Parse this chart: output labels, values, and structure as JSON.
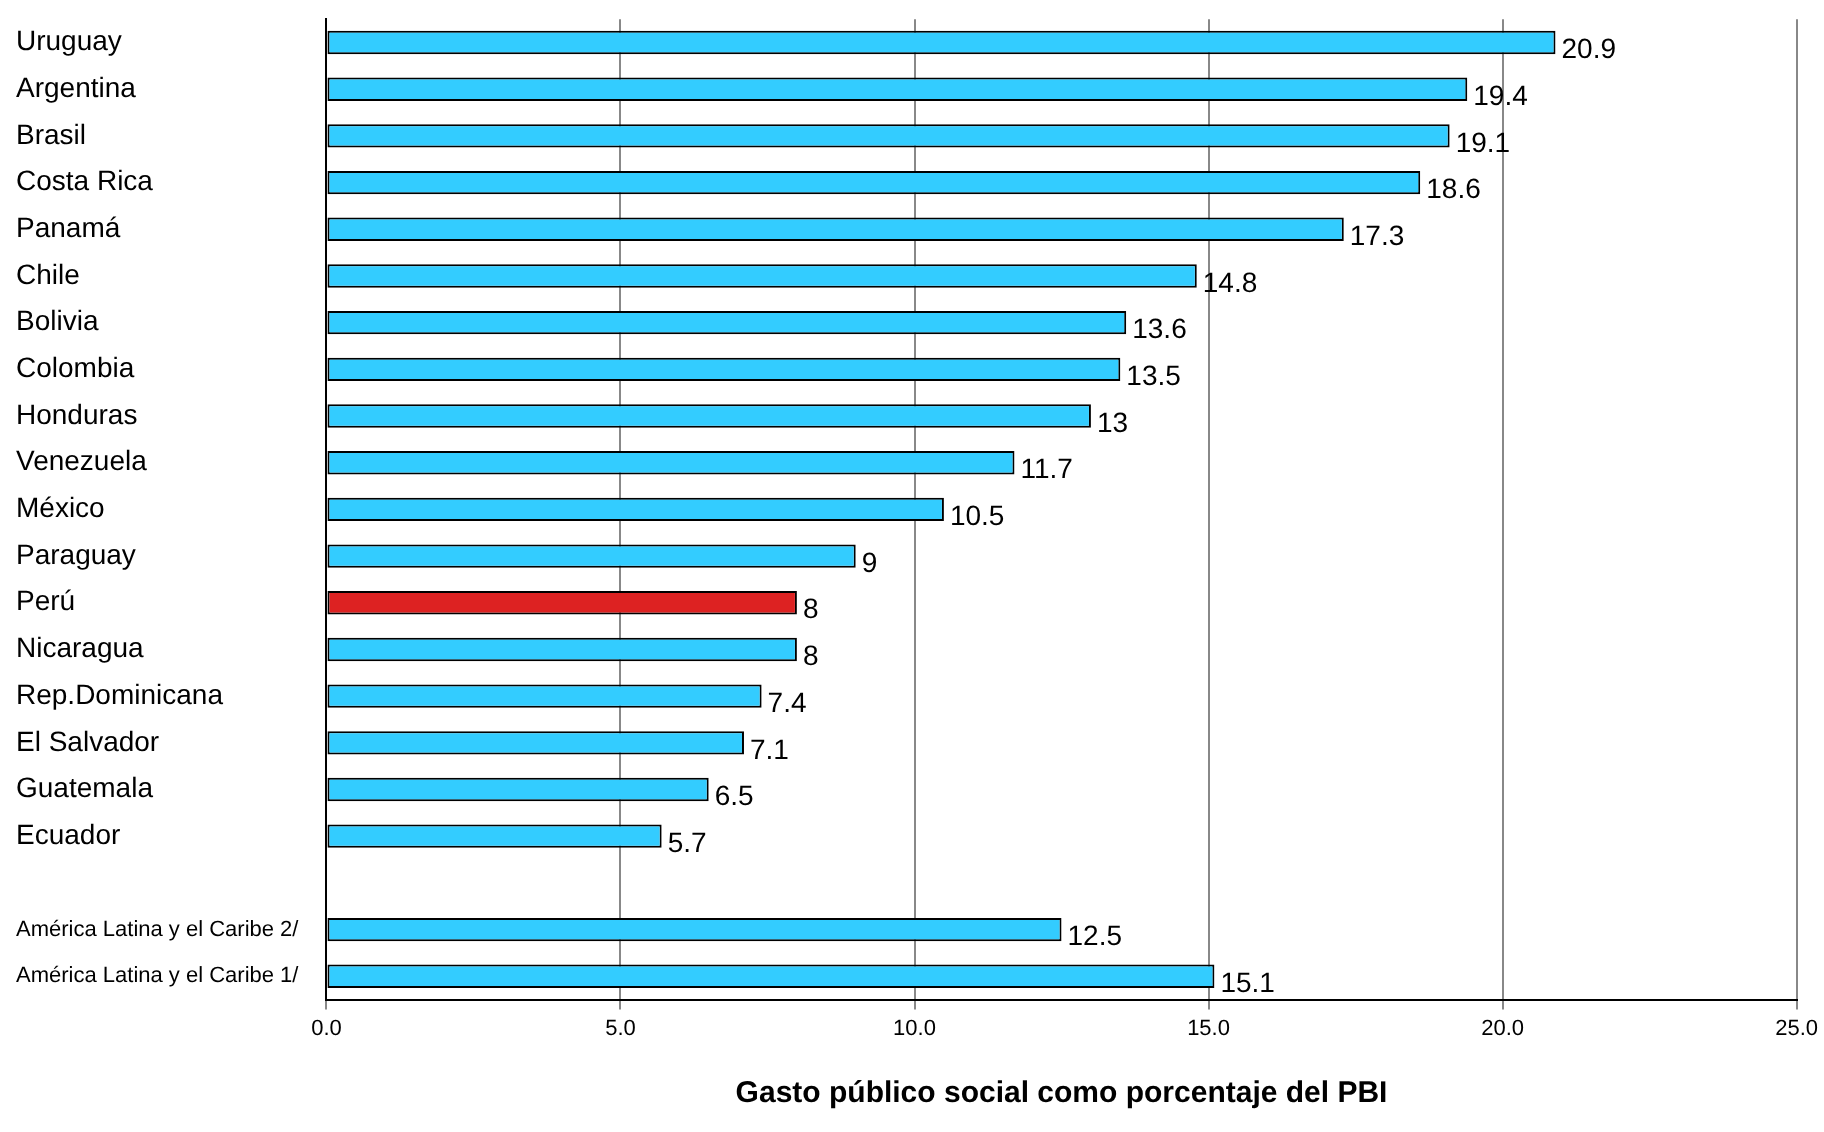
{
  "chart_data": {
    "type": "bar",
    "orientation": "horizontal",
    "xlabel": "Gasto público social como porcentaje del PBI",
    "categories": [
      "Uruguay",
      "Argentina",
      "Brasil",
      "Costa Rica",
      "Panamá",
      "Chile",
      "Bolivia",
      "Colombia",
      "Honduras",
      "Venezuela",
      "México",
      "Paraguay",
      "Perú",
      "Nicaragua",
      "Rep.Dominicana",
      "El Salvador",
      "Guatemala",
      "Ecuador",
      null,
      "América Latina y el Caribe 2/",
      "América Latina y el Caribe 1/"
    ],
    "values": [
      20.9,
      19.4,
      19.1,
      18.6,
      17.3,
      14.8,
      13.6,
      13.5,
      13,
      11.7,
      10.5,
      9,
      8,
      8,
      7.4,
      7.1,
      6.5,
      5.7,
      null,
      12.5,
      15.1
    ],
    "colors": [
      "#33ccff",
      "#33ccff",
      "#33ccff",
      "#33ccff",
      "#33ccff",
      "#33ccff",
      "#33ccff",
      "#33ccff",
      "#33ccff",
      "#33ccff",
      "#33ccff",
      "#33ccff",
      "#dd2222",
      "#33ccff",
      "#33ccff",
      "#33ccff",
      "#33ccff",
      "#33ccff",
      "#33ccff",
      "#33ccff",
      "#33ccff"
    ],
    "xlim": [
      0,
      25
    ],
    "xticks": [
      {
        "value": 0,
        "label": "0.0"
      },
      {
        "value": 5,
        "label": "5.0"
      },
      {
        "value": 10,
        "label": "10.0"
      },
      {
        "value": 15,
        "label": "15.0"
      },
      {
        "value": 20,
        "label": "20.0"
      },
      {
        "value": 25,
        "label": "25.0"
      }
    ],
    "grid": "x",
    "data_labels": true,
    "legend": false
  }
}
